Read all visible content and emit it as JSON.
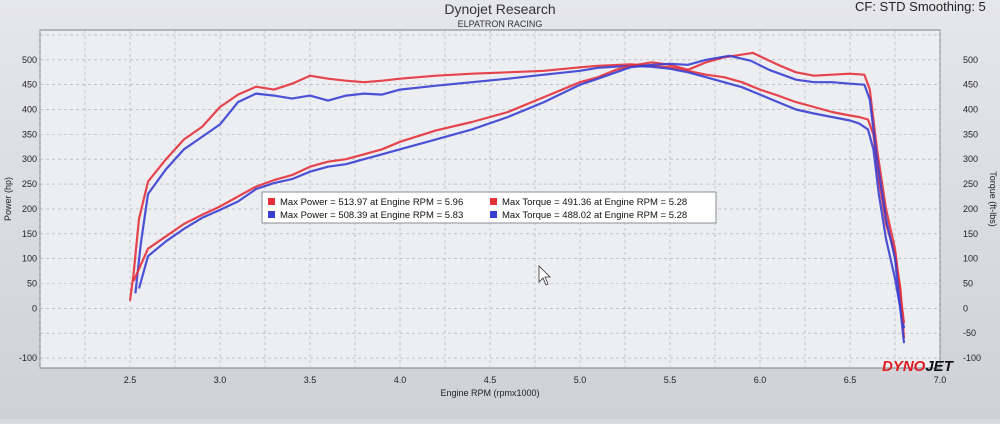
{
  "header": {
    "title": "Dynojet Research",
    "subtitle": "ELPATRON RACING",
    "cf_label": "CF: STD Smoothing: 5"
  },
  "logo": {
    "part1": "DYNO",
    "part2": "JET"
  },
  "colors": {
    "red": "#e6313b",
    "blue": "#3a3fd1",
    "dark": "#26283a"
  },
  "chart_data": {
    "type": "line",
    "xlabel": "Engine RPM (rpmx1000)",
    "ylabel_left": "Power (hp)",
    "ylabel_right": "Torque (ft-lbs)",
    "xlim": [
      2.0,
      7.0
    ],
    "ylim_left": [
      -120,
      560
    ],
    "ylim_right": [
      -120,
      560
    ],
    "x_ticks": [
      "2.5",
      "3.0",
      "3.5",
      "4.0",
      "4.5",
      "5.0",
      "5.5",
      "6.0",
      "6.5",
      "7.0"
    ],
    "y_ticks_left": [
      "-100",
      "0",
      "50",
      "100",
      "150",
      "200",
      "250",
      "300",
      "350",
      "400",
      "450",
      "500"
    ],
    "y_ticks_right": [
      "-100",
      "-50",
      "0",
      "50",
      "100",
      "150",
      "200",
      "250",
      "300",
      "350",
      "400",
      "450",
      "500"
    ],
    "grid": true,
    "legend": {
      "placement": "center",
      "entries": [
        {
          "color": "red",
          "text": "Max Power = 513.97 at Engine RPM = 5.96"
        },
        {
          "color": "red",
          "text": "Max Torque = 491.36 at Engine RPM = 5.28"
        },
        {
          "color": "blue",
          "text": "Max Power = 508.39 at Engine RPM = 5.83"
        },
        {
          "color": "blue",
          "text": "Max Torque = 488.02 at Engine RPM = 5.28"
        }
      ]
    },
    "series": [
      {
        "color": "red",
        "kind": "torque",
        "points": [
          [
            2.5,
            15
          ],
          [
            2.52,
            70
          ],
          [
            2.55,
            180
          ],
          [
            2.6,
            255
          ],
          [
            2.7,
            300
          ],
          [
            2.8,
            340
          ],
          [
            2.9,
            365
          ],
          [
            3.0,
            405
          ],
          [
            3.1,
            430
          ],
          [
            3.2,
            446
          ],
          [
            3.3,
            440
          ],
          [
            3.4,
            452
          ],
          [
            3.5,
            468
          ],
          [
            3.6,
            462
          ],
          [
            3.7,
            458
          ],
          [
            3.8,
            455
          ],
          [
            3.9,
            458
          ],
          [
            4.0,
            462
          ],
          [
            4.2,
            468
          ],
          [
            4.4,
            472
          ],
          [
            4.6,
            475
          ],
          [
            4.8,
            478
          ],
          [
            5.0,
            485
          ],
          [
            5.1,
            488
          ],
          [
            5.28,
            491
          ],
          [
            5.4,
            488
          ],
          [
            5.5,
            485
          ],
          [
            5.6,
            478
          ],
          [
            5.7,
            470
          ],
          [
            5.8,
            465
          ],
          [
            5.9,
            455
          ],
          [
            6.0,
            440
          ],
          [
            6.1,
            428
          ],
          [
            6.2,
            415
          ],
          [
            6.3,
            405
          ],
          [
            6.4,
            395
          ],
          [
            6.5,
            388
          ],
          [
            6.55,
            385
          ],
          [
            6.6,
            380
          ],
          [
            6.63,
            350
          ],
          [
            6.66,
            260
          ],
          [
            6.7,
            170
          ],
          [
            6.75,
            110
          ],
          [
            6.78,
            40
          ],
          [
            6.8,
            -60
          ]
        ]
      },
      {
        "color": "blue",
        "kind": "torque",
        "points": [
          [
            2.53,
            30
          ],
          [
            2.56,
            130
          ],
          [
            2.6,
            230
          ],
          [
            2.7,
            280
          ],
          [
            2.8,
            320
          ],
          [
            2.9,
            345
          ],
          [
            3.0,
            370
          ],
          [
            3.1,
            415
          ],
          [
            3.2,
            432
          ],
          [
            3.3,
            428
          ],
          [
            3.4,
            422
          ],
          [
            3.5,
            428
          ],
          [
            3.6,
            418
          ],
          [
            3.7,
            428
          ],
          [
            3.8,
            432
          ],
          [
            3.9,
            430
          ],
          [
            4.0,
            440
          ],
          [
            4.2,
            448
          ],
          [
            4.4,
            455
          ],
          [
            4.6,
            462
          ],
          [
            4.8,
            470
          ],
          [
            5.0,
            478
          ],
          [
            5.1,
            484
          ],
          [
            5.28,
            488
          ],
          [
            5.4,
            486
          ],
          [
            5.5,
            482
          ],
          [
            5.6,
            475
          ],
          [
            5.7,
            465
          ],
          [
            5.8,
            455
          ],
          [
            5.9,
            445
          ],
          [
            6.0,
            430
          ],
          [
            6.1,
            415
          ],
          [
            6.2,
            400
          ],
          [
            6.3,
            392
          ],
          [
            6.4,
            385
          ],
          [
            6.5,
            378
          ],
          [
            6.55,
            372
          ],
          [
            6.6,
            360
          ],
          [
            6.63,
            320
          ],
          [
            6.66,
            230
          ],
          [
            6.7,
            140
          ],
          [
            6.75,
            60
          ],
          [
            6.8,
            -40
          ]
        ]
      },
      {
        "color": "red",
        "kind": "power",
        "points": [
          [
            2.52,
            55
          ],
          [
            2.6,
            120
          ],
          [
            2.7,
            145
          ],
          [
            2.8,
            170
          ],
          [
            2.9,
            188
          ],
          [
            3.0,
            205
          ],
          [
            3.1,
            225
          ],
          [
            3.2,
            245
          ],
          [
            3.3,
            258
          ],
          [
            3.4,
            268
          ],
          [
            3.5,
            285
          ],
          [
            3.6,
            295
          ],
          [
            3.7,
            300
          ],
          [
            3.8,
            310
          ],
          [
            3.9,
            320
          ],
          [
            4.0,
            335
          ],
          [
            4.2,
            358
          ],
          [
            4.4,
            375
          ],
          [
            4.6,
            395
          ],
          [
            4.8,
            425
          ],
          [
            5.0,
            455
          ],
          [
            5.1,
            465
          ],
          [
            5.2,
            480
          ],
          [
            5.28,
            488
          ],
          [
            5.4,
            495
          ],
          [
            5.5,
            490
          ],
          [
            5.6,
            480
          ],
          [
            5.7,
            495
          ],
          [
            5.8,
            505
          ],
          [
            5.96,
            514
          ],
          [
            6.1,
            490
          ],
          [
            6.2,
            475
          ],
          [
            6.3,
            468
          ],
          [
            6.4,
            470
          ],
          [
            6.5,
            472
          ],
          [
            6.58,
            470
          ],
          [
            6.61,
            440
          ],
          [
            6.65,
            320
          ],
          [
            6.7,
            200
          ],
          [
            6.75,
            120
          ],
          [
            6.8,
            -30
          ]
        ]
      },
      {
        "color": "blue",
        "kind": "power",
        "points": [
          [
            2.55,
            40
          ],
          [
            2.6,
            105
          ],
          [
            2.7,
            135
          ],
          [
            2.8,
            160
          ],
          [
            2.9,
            182
          ],
          [
            3.0,
            198
          ],
          [
            3.1,
            215
          ],
          [
            3.2,
            240
          ],
          [
            3.3,
            252
          ],
          [
            3.4,
            260
          ],
          [
            3.5,
            275
          ],
          [
            3.6,
            285
          ],
          [
            3.7,
            290
          ],
          [
            3.8,
            300
          ],
          [
            3.9,
            310
          ],
          [
            4.0,
            320
          ],
          [
            4.2,
            340
          ],
          [
            4.4,
            360
          ],
          [
            4.6,
            385
          ],
          [
            4.8,
            415
          ],
          [
            5.0,
            450
          ],
          [
            5.1,
            462
          ],
          [
            5.2,
            475
          ],
          [
            5.28,
            485
          ],
          [
            5.4,
            490
          ],
          [
            5.5,
            492
          ],
          [
            5.6,
            490
          ],
          [
            5.7,
            500
          ],
          [
            5.83,
            508
          ],
          [
            5.95,
            498
          ],
          [
            6.05,
            480
          ],
          [
            6.2,
            460
          ],
          [
            6.3,
            455
          ],
          [
            6.4,
            455
          ],
          [
            6.5,
            452
          ],
          [
            6.58,
            450
          ],
          [
            6.61,
            420
          ],
          [
            6.65,
            300
          ],
          [
            6.7,
            180
          ],
          [
            6.75,
            100
          ],
          [
            6.8,
            -70
          ]
        ]
      }
    ]
  }
}
